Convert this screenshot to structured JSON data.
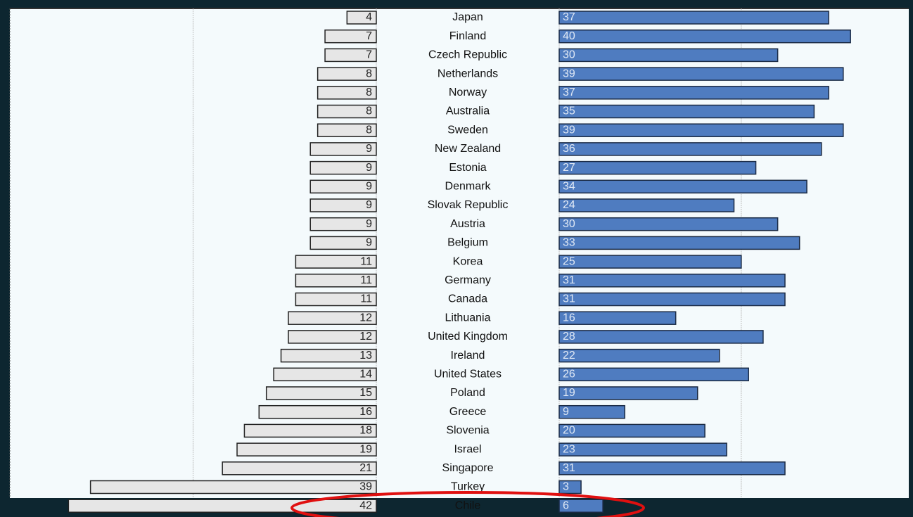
{
  "chart_data": {
    "type": "butterfly",
    "categories": [
      "Japan",
      "Finland",
      "Czech Republic",
      "Netherlands",
      "Norway",
      "Australia",
      "Sweden",
      "New Zealand",
      "Estonia",
      "Denmark",
      "Slovak Republic",
      "Austria",
      "Belgium",
      "Korea",
      "Germany",
      "Canada",
      "Lithuania",
      "United Kingdom",
      "Ireland",
      "United States",
      "Poland",
      "Greece",
      "Slovenia",
      "Israel",
      "Singapore",
      "Turkey",
      "Chile"
    ],
    "series": [
      {
        "color": "#e6e6e6",
        "values": [
          4,
          7,
          7,
          8,
          8,
          8,
          8,
          9,
          9,
          9,
          9,
          9,
          9,
          11,
          11,
          11,
          12,
          12,
          13,
          14,
          15,
          16,
          18,
          19,
          21,
          39,
          42
        ]
      },
      {
        "color": "#4f7cc0",
        "values": [
          37,
          40,
          30,
          39,
          37,
          35,
          39,
          36,
          27,
          34,
          24,
          30,
          33,
          25,
          31,
          31,
          16,
          28,
          22,
          26,
          19,
          9,
          20,
          23,
          31,
          3,
          6
        ]
      }
    ],
    "xlim": [
      0,
      50
    ],
    "x2lim": [
      0,
      48
    ],
    "xticks": [
      0,
      25
    ],
    "grid": true
  }
}
